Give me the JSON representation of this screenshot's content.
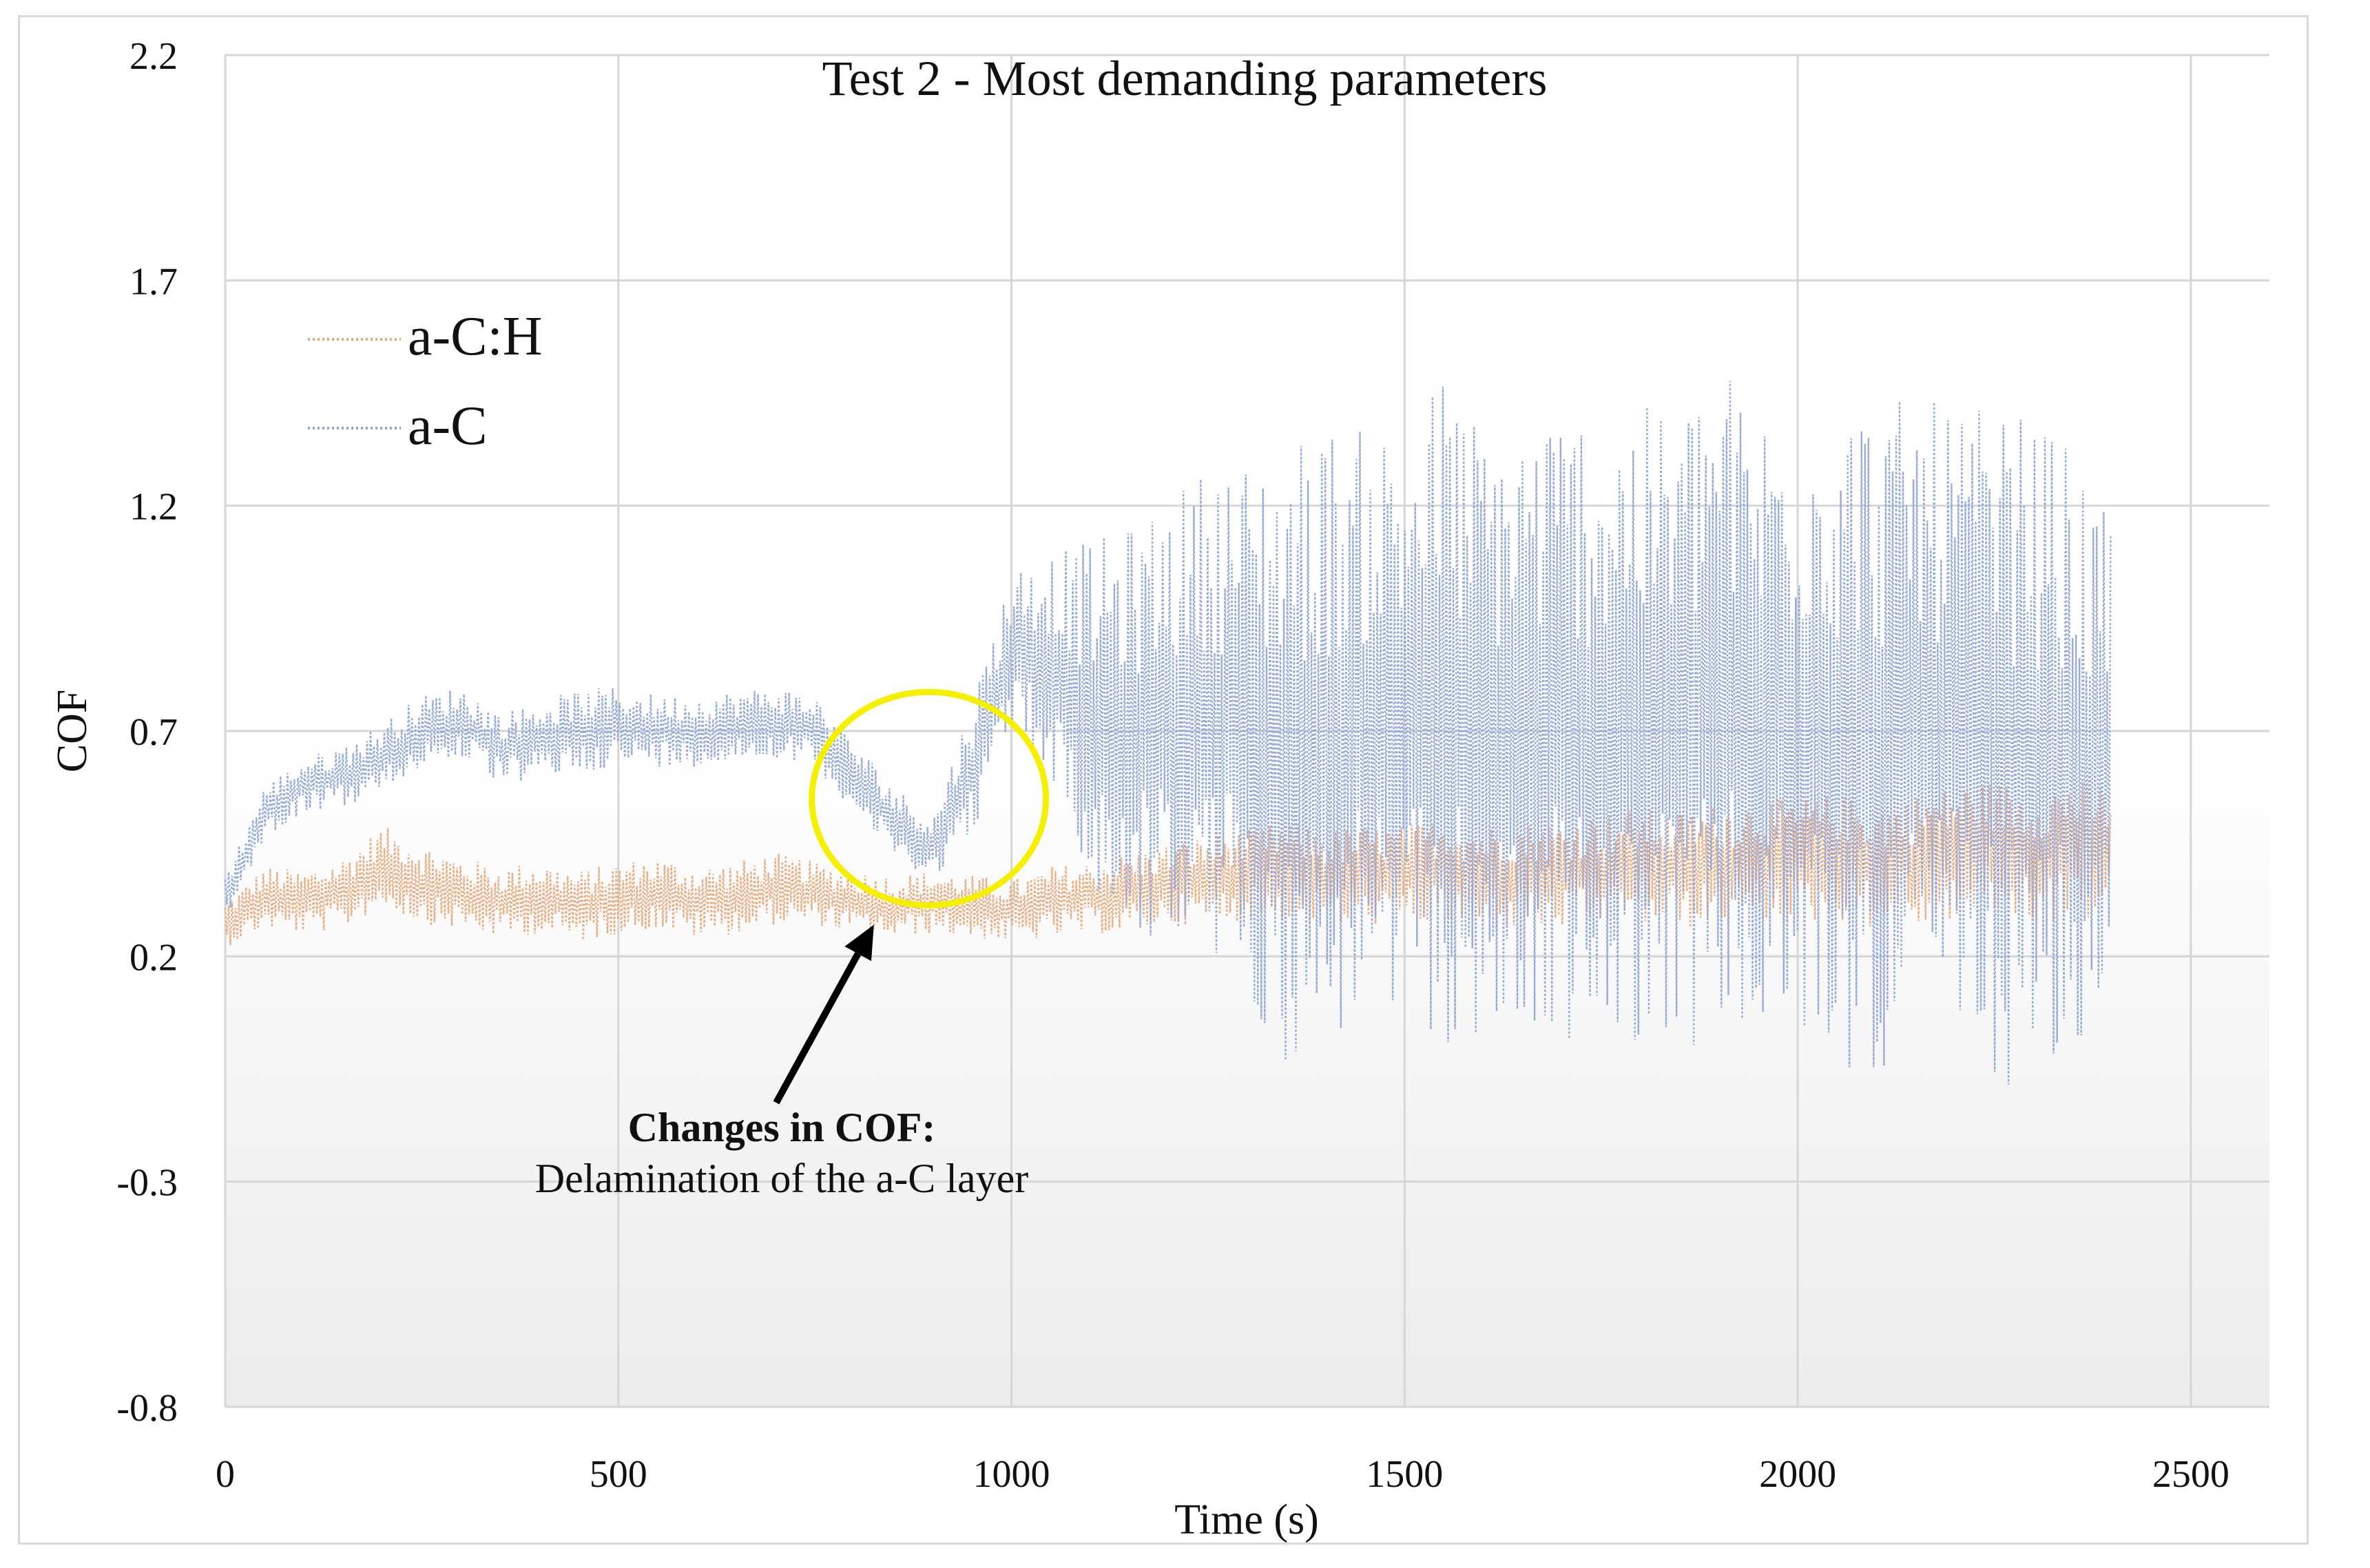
{
  "chart_data": {
    "type": "line",
    "title": "Test 2 - Most demanding parameters",
    "xlabel": "Time (s)",
    "ylabel": "COF",
    "xlim": [
      0,
      2600
    ],
    "ylim": [
      -0.8,
      2.2
    ],
    "x_ticks": [
      0,
      500,
      1000,
      1500,
      2000,
      2500
    ],
    "y_ticks": [
      -0.8,
      -0.3,
      0.2,
      0.7,
      1.2,
      1.7,
      2.2
    ],
    "x_tick_labels": [
      "0",
      "500",
      "1000",
      "1500",
      "2000",
      "2500"
    ],
    "y_tick_labels": [
      "-0.8",
      "-0.3",
      "0.2",
      "0.7",
      "1.2",
      "1.7",
      "2.2"
    ],
    "grid": true,
    "legend_position": "top-left",
    "series": [
      {
        "name": "a-C:H",
        "color": "#e8a97a",
        "x": [
          0,
          50,
          100,
          150,
          200,
          250,
          300,
          350,
          400,
          450,
          500,
          550,
          600,
          650,
          700,
          750,
          800,
          850,
          900,
          950,
          1000,
          1050,
          1100,
          1150,
          1200,
          1250,
          1300,
          1350,
          1400,
          1450,
          1500,
          1550,
          1600,
          1650,
          1700,
          1750,
          1800,
          1850,
          1900,
          1950,
          2000,
          2050,
          2100,
          2150,
          2200,
          2250,
          2300,
          2350,
          2400
        ],
        "values": [
          0.27,
          0.33,
          0.32,
          0.34,
          0.4,
          0.36,
          0.34,
          0.32,
          0.33,
          0.31,
          0.33,
          0.34,
          0.32,
          0.33,
          0.35,
          0.34,
          0.32,
          0.31,
          0.32,
          0.31,
          0.3,
          0.32,
          0.33,
          0.34,
          0.36,
          0.37,
          0.38,
          0.39,
          0.37,
          0.38,
          0.38,
          0.39,
          0.37,
          0.38,
          0.38,
          0.39,
          0.4,
          0.39,
          0.4,
          0.41,
          0.41,
          0.42,
          0.4,
          0.41,
          0.43,
          0.44,
          0.42,
          0.44,
          0.43
        ],
        "band": [
          0.05,
          0.07,
          0.07,
          0.08,
          0.09,
          0.09,
          0.08,
          0.08,
          0.08,
          0.08,
          0.08,
          0.08,
          0.08,
          0.08,
          0.08,
          0.07,
          0.07,
          0.07,
          0.07,
          0.07,
          0.07,
          0.08,
          0.08,
          0.09,
          0.09,
          0.1,
          0.1,
          0.11,
          0.11,
          0.11,
          0.11,
          0.12,
          0.12,
          0.12,
          0.12,
          0.13,
          0.13,
          0.13,
          0.14,
          0.14,
          0.14,
          0.14,
          0.14,
          0.15,
          0.15,
          0.15,
          0.15,
          0.16,
          0.15
        ]
      },
      {
        "name": "a-C",
        "color": "#8ea5d8",
        "x": [
          0,
          50,
          100,
          150,
          200,
          250,
          300,
          350,
          400,
          450,
          500,
          550,
          600,
          650,
          700,
          750,
          800,
          850,
          900,
          950,
          1000,
          1050,
          1100,
          1150,
          1200,
          1250,
          1300,
          1350,
          1400,
          1450,
          1500,
          1550,
          1600,
          1650,
          1700,
          1750,
          1800,
          1850,
          1900,
          1950,
          2000,
          2050,
          2100,
          2150,
          2200,
          2250,
          2300,
          2350,
          2400
        ],
        "values": [
          0.33,
          0.52,
          0.58,
          0.6,
          0.64,
          0.7,
          0.72,
          0.66,
          0.68,
          0.7,
          0.71,
          0.7,
          0.7,
          0.71,
          0.72,
          0.7,
          0.6,
          0.5,
          0.44,
          0.62,
          0.88,
          0.85,
          0.72,
          0.7,
          0.72,
          0.74,
          0.7,
          0.65,
          0.68,
          0.72,
          0.7,
          0.75,
          0.68,
          0.7,
          0.72,
          0.68,
          0.72,
          0.7,
          0.78,
          0.7,
          0.72,
          0.7,
          0.68,
          0.72,
          0.7,
          0.66,
          0.65,
          0.62,
          0.6
        ],
        "band": [
          0.05,
          0.06,
          0.06,
          0.07,
          0.08,
          0.08,
          0.08,
          0.08,
          0.09,
          0.09,
          0.09,
          0.08,
          0.08,
          0.08,
          0.08,
          0.08,
          0.08,
          0.08,
          0.07,
          0.15,
          0.18,
          0.25,
          0.4,
          0.45,
          0.5,
          0.55,
          0.6,
          0.7,
          0.7,
          0.65,
          0.7,
          0.75,
          0.7,
          0.7,
          0.7,
          0.75,
          0.7,
          0.72,
          0.75,
          0.72,
          0.72,
          0.75,
          0.75,
          0.72,
          0.72,
          0.75,
          0.75,
          0.7,
          0.55
        ]
      }
    ],
    "annotations": [
      {
        "title": "Changes in COF:",
        "text": "Delamination of the a-C layer",
        "circle_center": [
          895,
          0.55
        ],
        "arrow_tip": [
          825,
          0.27
        ]
      }
    ]
  }
}
